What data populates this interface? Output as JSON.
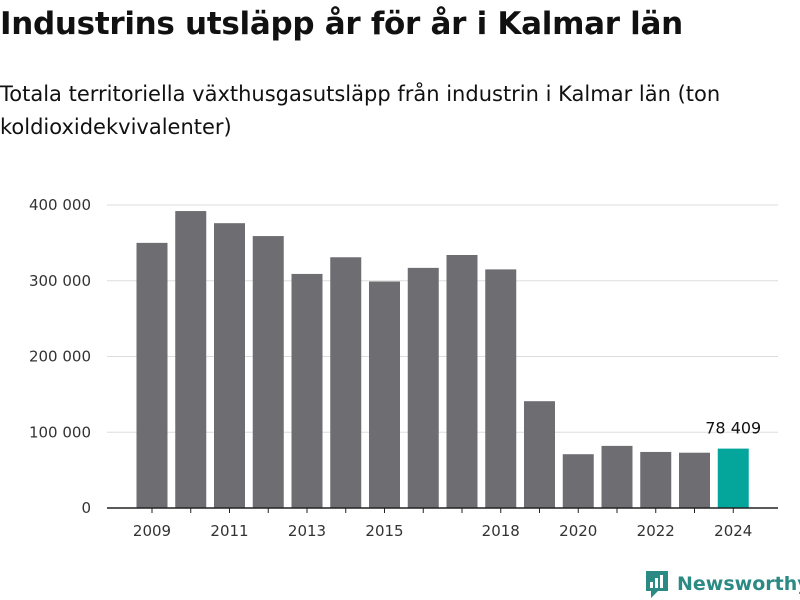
{
  "title": "Industrins utsläpp år för år i Kalmar län",
  "subtitle": "Totala territoriella växthusgasutsläpp från industrin i Kalmar län (ton koldioxidekvivalenter)",
  "brand": {
    "name": "Newsworthy",
    "icon": "newsworthy-logo-icon",
    "color": "#2c8a84"
  },
  "chart_data": {
    "type": "bar",
    "categories": [
      "2009",
      "2010",
      "2011",
      "2012",
      "2013",
      "2014",
      "2015",
      "2016",
      "2017",
      "2018",
      "2019",
      "2020",
      "2021",
      "2022",
      "2023",
      "2024"
    ],
    "values": [
      350000,
      392000,
      376000,
      359000,
      309000,
      331000,
      299000,
      317000,
      334000,
      315000,
      141000,
      71000,
      82000,
      74000,
      73000,
      78409
    ],
    "x_tick_labels": [
      "2009",
      "2011",
      "2013",
      "2015",
      "2018",
      "2020",
      "2022",
      "2024"
    ],
    "y_ticks": [
      0,
      100000,
      200000,
      300000,
      400000
    ],
    "y_tick_labels": [
      "0",
      "100 000",
      "200 000",
      "300 000",
      "400 000"
    ],
    "ylim": [
      0,
      400000
    ],
    "grid": true,
    "colors": {
      "bar": "#6e6d72",
      "highlight": "#04a59b",
      "grid": "#dddddd",
      "axis": "#222222"
    },
    "highlight_category": "2024",
    "annotation": {
      "category": "2024",
      "text": "78 409"
    }
  }
}
